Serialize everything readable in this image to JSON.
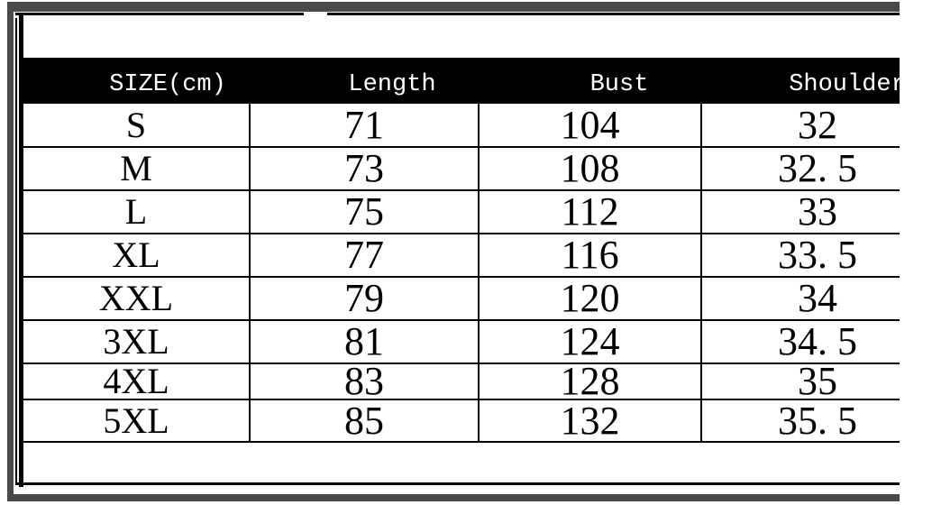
{
  "colors": {
    "frame_gray": "#4a4a4a",
    "header_bg": "#000000",
    "header_text": "#ffffff",
    "body_text": "#000000",
    "background": "#ffffff"
  },
  "table": {
    "columns": [
      {
        "label": "SIZE(cm)"
      },
      {
        "label": "Length"
      },
      {
        "label": "Bust"
      },
      {
        "label": "Shoulder"
      }
    ],
    "rows": [
      {
        "size": "S",
        "length": "71",
        "bust": "104",
        "shoulder": "32"
      },
      {
        "size": "M",
        "length": "73",
        "bust": "108",
        "shoulder": "32. 5"
      },
      {
        "size": "L",
        "length": "75",
        "bust": "112",
        "shoulder": "33"
      },
      {
        "size": "XL",
        "length": "77",
        "bust": "116",
        "shoulder": "33. 5"
      },
      {
        "size": "XXL",
        "length": "79",
        "bust": "120",
        "shoulder": "34"
      },
      {
        "size": "3XL",
        "length": "81",
        "bust": "124",
        "shoulder": "34. 5"
      },
      {
        "size": "4XL",
        "length": "83",
        "bust": "128",
        "shoulder": "35"
      },
      {
        "size": "5XL",
        "length": "85",
        "bust": "132",
        "shoulder": "35. 5"
      }
    ]
  },
  "chart_data": {
    "type": "table",
    "columns": [
      "SIZE(cm)",
      "Length",
      "Bust",
      "Shoulder"
    ],
    "rows": [
      [
        "S",
        71,
        104,
        32
      ],
      [
        "M",
        73,
        108,
        32.5
      ],
      [
        "L",
        75,
        112,
        33
      ],
      [
        "XL",
        77,
        116,
        33.5
      ],
      [
        "XXL",
        79,
        120,
        34
      ],
      [
        "3XL",
        81,
        124,
        34.5
      ],
      [
        "4XL",
        83,
        128,
        35
      ],
      [
        "5XL",
        85,
        132,
        35.5
      ]
    ]
  }
}
